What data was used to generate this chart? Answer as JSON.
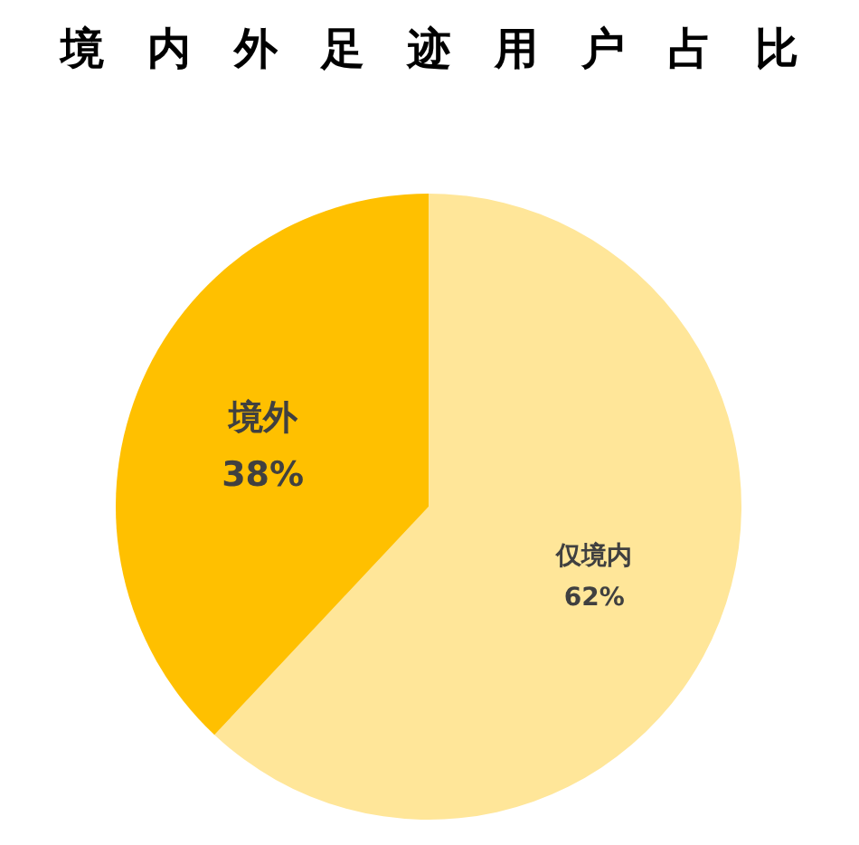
{
  "chart_data": {
    "type": "pie",
    "title": "境内外足迹用户占比",
    "categories": [
      "仅境内",
      "境外"
    ],
    "values": [
      62,
      38
    ],
    "colors": [
      "#ffe699",
      "#ffc000"
    ],
    "value_labels": [
      "62%",
      "38%"
    ],
    "legend": false
  }
}
